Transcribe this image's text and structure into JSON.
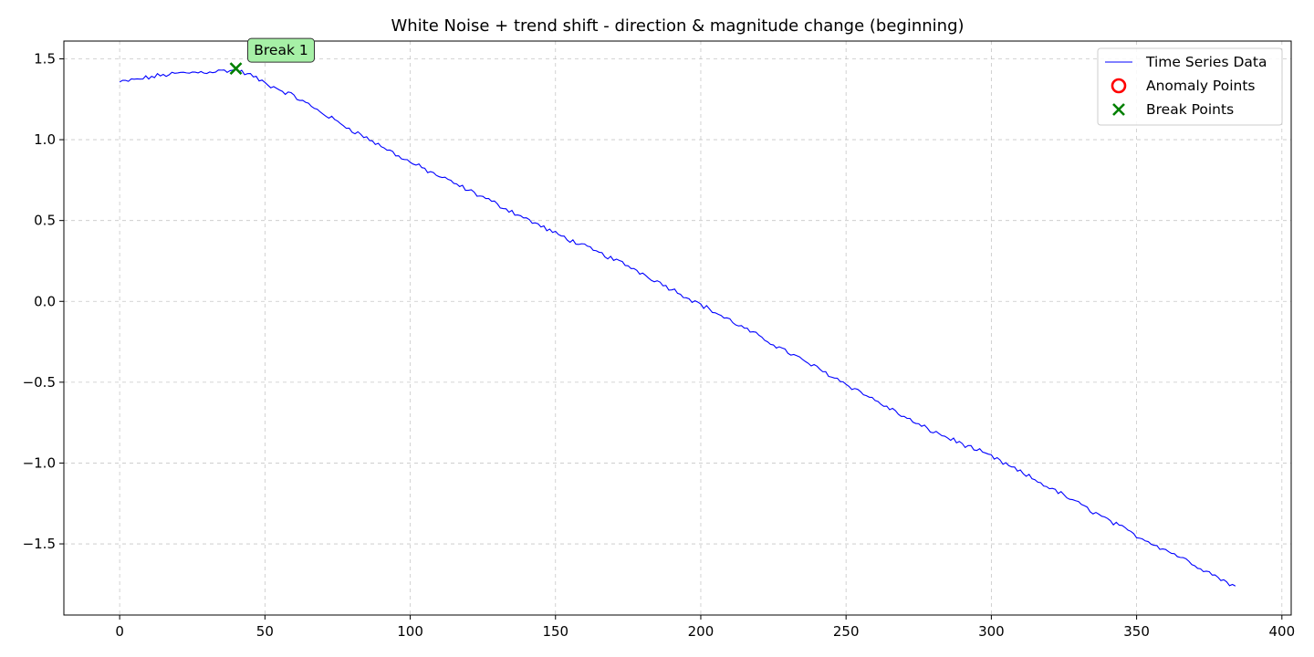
{
  "chart_data": {
    "type": "line",
    "title": "White Noise + trend shift - direction & magnitude change (beginning)",
    "xlabel": "",
    "ylabel": "",
    "xlim": [
      -19.2,
      403.2
    ],
    "ylim": [
      -1.94,
      1.61
    ],
    "x_ticks": [
      0,
      50,
      100,
      150,
      200,
      250,
      300,
      350,
      400
    ],
    "y_ticks": [
      1.5,
      1.0,
      0.5,
      0.0,
      -0.5,
      -1.0,
      -1.5
    ],
    "y_tick_labels": [
      "1.5",
      "1.0",
      "0.5",
      "0.0",
      "−0.5",
      "−1.0",
      "−1.5"
    ],
    "grid": true,
    "legend_position": "upper right",
    "series": [
      {
        "name": "Time Series Data",
        "color": "#0000ff",
        "x_start": 0,
        "x_end": 384,
        "anchors": [
          [
            0,
            1.355
          ],
          [
            5,
            1.37
          ],
          [
            10,
            1.385
          ],
          [
            15,
            1.4
          ],
          [
            20,
            1.41
          ],
          [
            30,
            1.42
          ],
          [
            40,
            1.43
          ],
          [
            45,
            1.4
          ],
          [
            50,
            1.35
          ],
          [
            60,
            1.27
          ],
          [
            75,
            1.11
          ],
          [
            100,
            0.86
          ],
          [
            125,
            0.645
          ],
          [
            150,
            0.42
          ],
          [
            175,
            0.22
          ],
          [
            200,
            -0.02
          ],
          [
            225,
            -0.265
          ],
          [
            250,
            -0.51
          ],
          [
            275,
            -0.765
          ],
          [
            300,
            -0.96
          ],
          [
            325,
            -1.2
          ],
          [
            350,
            -1.45
          ],
          [
            365,
            -1.58
          ],
          [
            384,
            -1.765
          ]
        ],
        "noise_amplitude": 0.012
      }
    ],
    "anomaly_points": {
      "name": "Anomaly Points",
      "color": "#ff0000",
      "points": []
    },
    "break_points": {
      "name": "Break Points",
      "color": "#008000",
      "points": [
        {
          "x": 40,
          "y": 1.44,
          "label": "Break 1"
        }
      ]
    },
    "annotation_box_color": "#a6f0a6"
  }
}
